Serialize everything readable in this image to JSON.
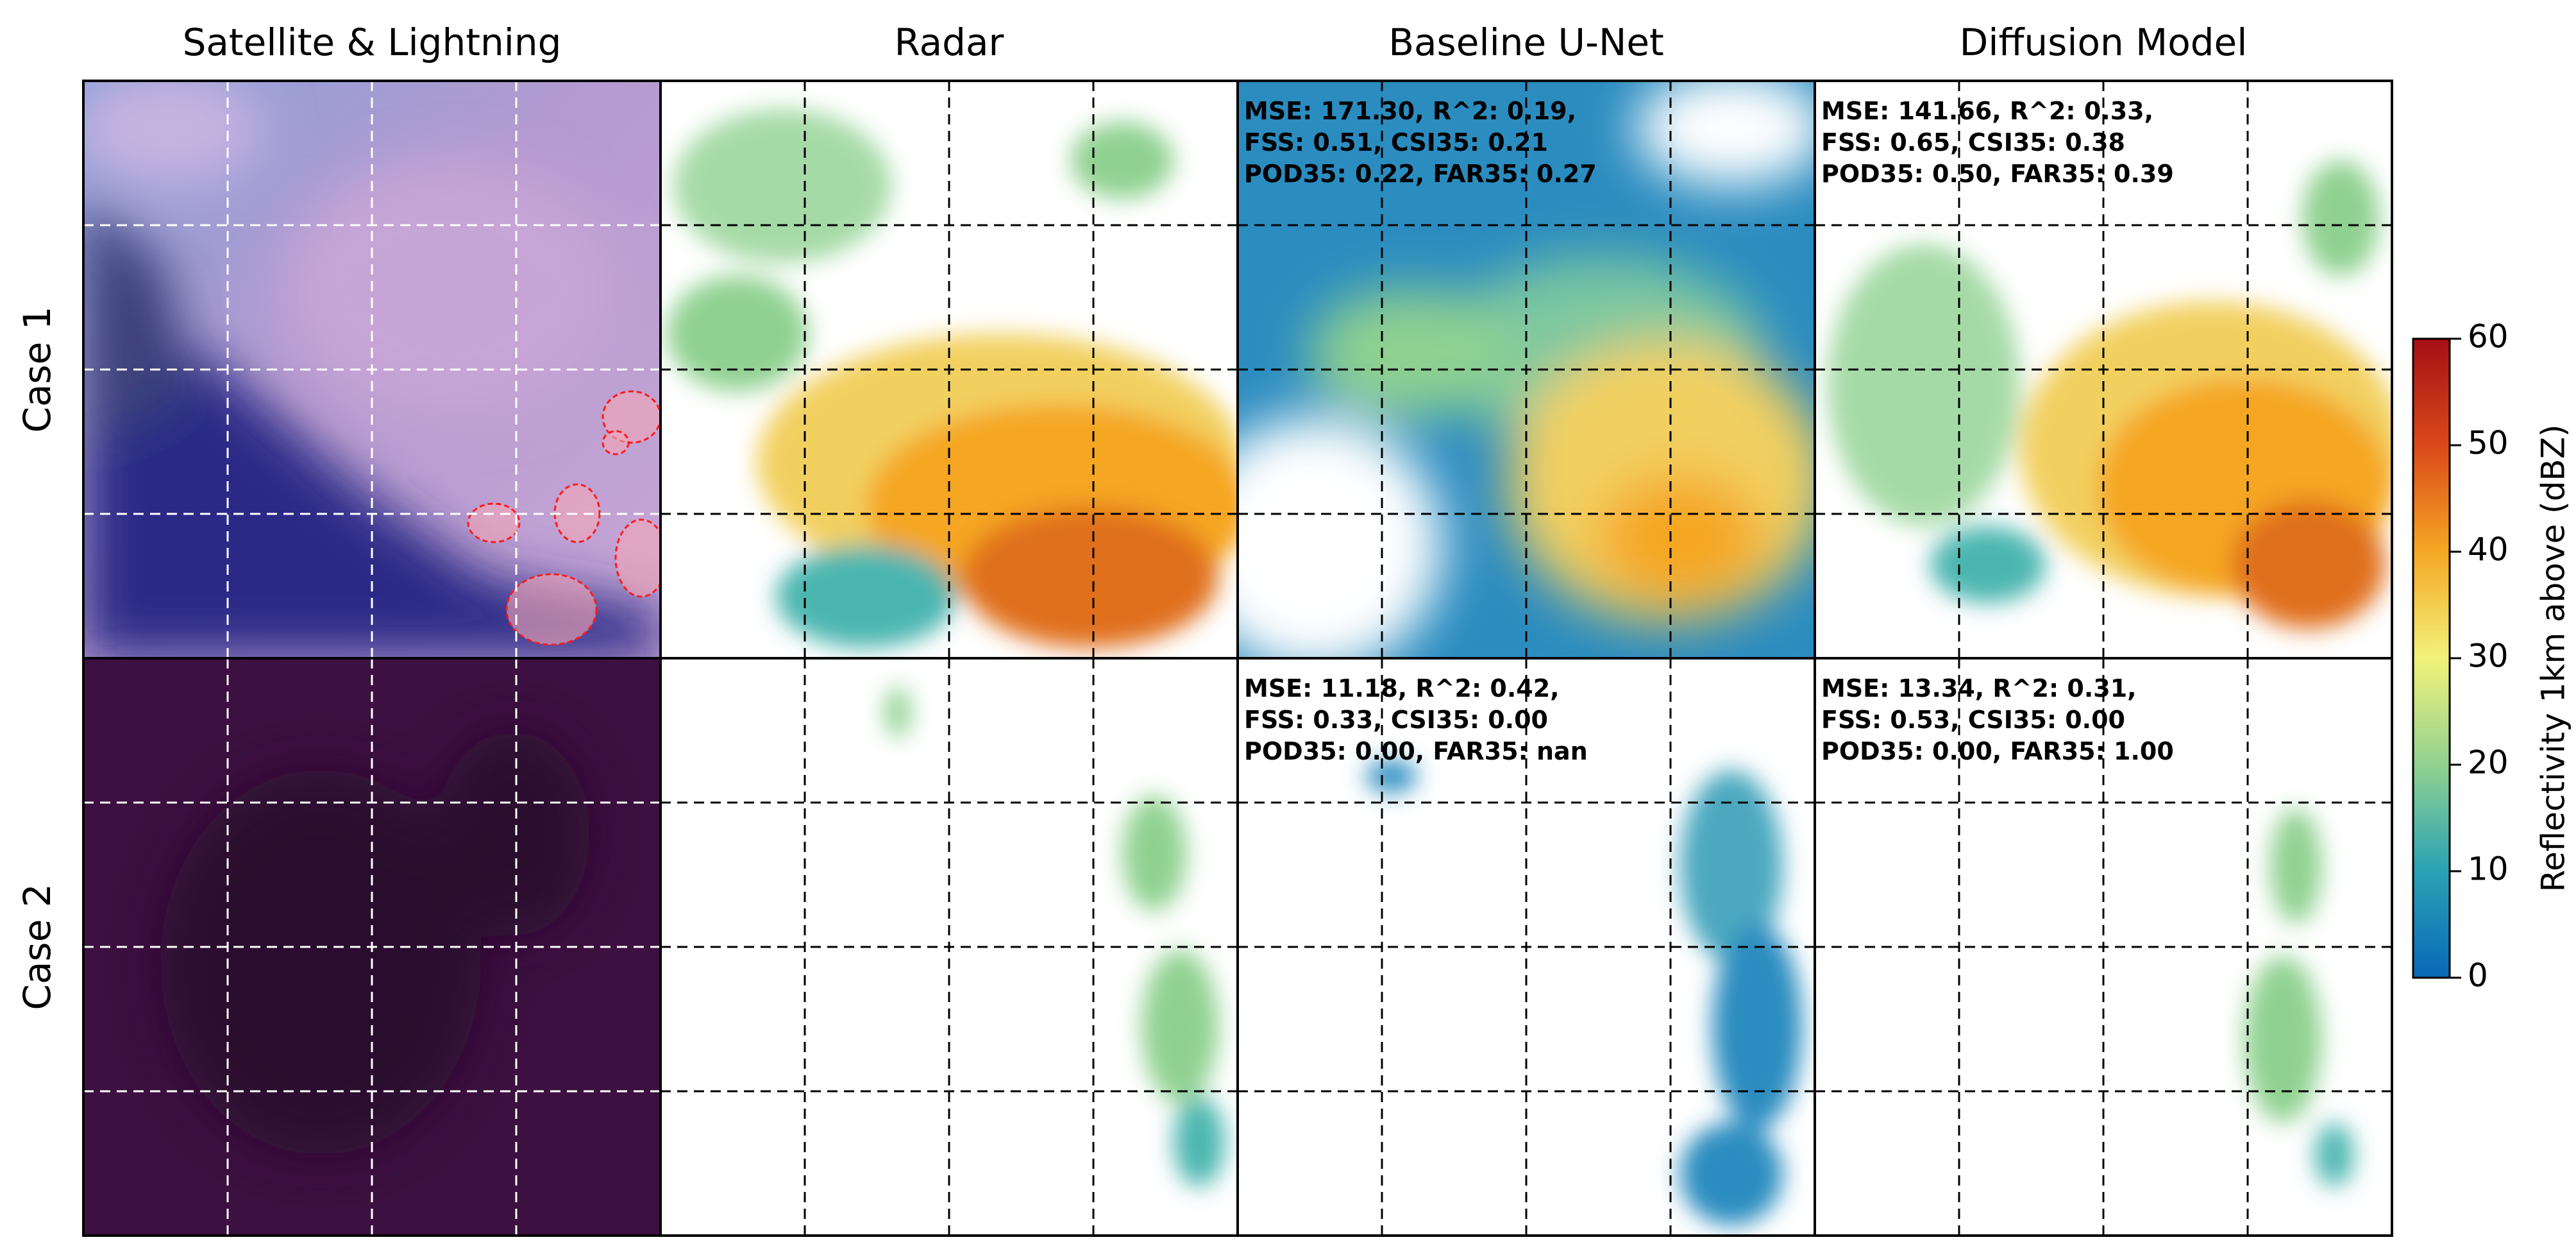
{
  "columns": [
    "Satellite & Lightning",
    "Radar",
    "Baseline U-Net",
    "Diffusion Model"
  ],
  "cases": [
    {
      "label": "Case 1",
      "baseline_unet": [
        "MSE: 171.30, R^2: 0.19,",
        "FSS: 0.51, CSI35: 0.21",
        "POD35: 0.22, FAR35: 0.27"
      ],
      "diffusion_model": [
        "MSE: 141.66, R^2: 0.33,",
        "FSS: 0.65, CSI35: 0.38",
        "POD35: 0.50, FAR35: 0.39"
      ]
    },
    {
      "label": "Case 2",
      "baseline_unet": [
        "MSE: 11.18, R^2: 0.42,",
        "FSS: 0.33, CSI35: 0.00",
        "POD35: 0.00, FAR35: nan"
      ],
      "diffusion_model": [
        "MSE: 13.34, R^2: 0.31,",
        "FSS: 0.53, CSI35: 0.00",
        "POD35: 0.00, FAR35: 1.00"
      ]
    }
  ],
  "colorbar": {
    "label": "Reflectivity 1km above (dBZ)",
    "lim": [
      0,
      60
    ],
    "ticks": [
      0,
      10,
      20,
      30,
      40,
      50,
      60
    ]
  }
}
